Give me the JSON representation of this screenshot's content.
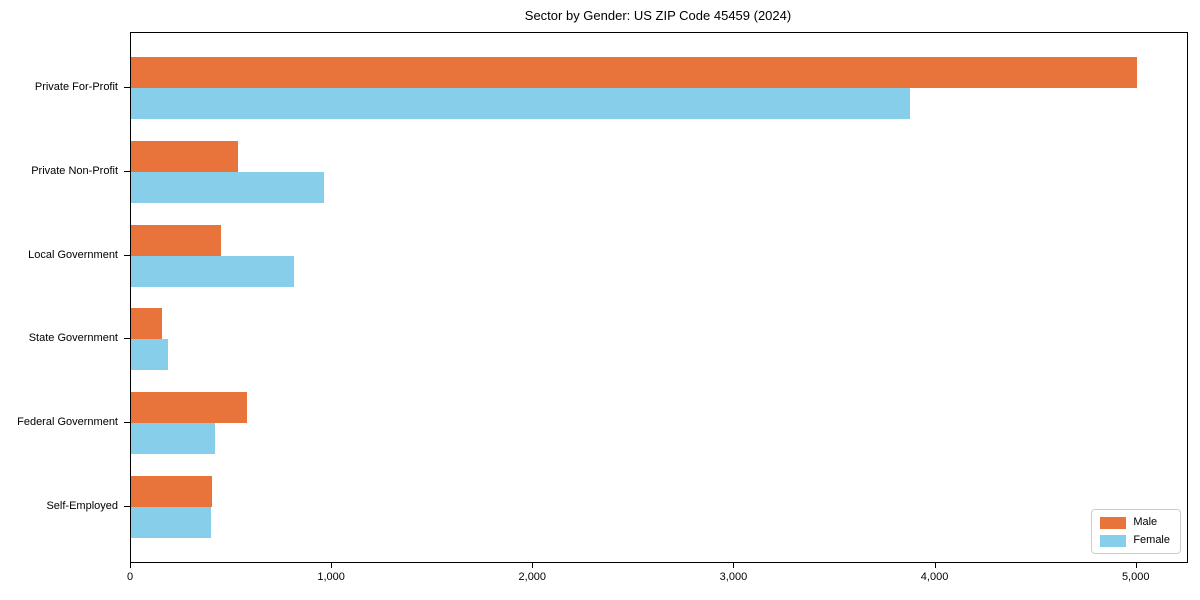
{
  "title": "Sector by Gender: US ZIP Code 45459 (2024)",
  "chart_data": {
    "type": "bar",
    "orientation": "horizontal",
    "title": "Sector by Gender: US ZIP Code 45459 (2024)",
    "categories": [
      "Private For-Profit",
      "Private Non-Profit",
      "Local Government",
      "State Government",
      "Federal Government",
      "Self-Employed"
    ],
    "series": [
      {
        "name": "Male",
        "color": "#E8743B",
        "values": [
          5000,
          530,
          445,
          155,
          575,
          405
        ]
      },
      {
        "name": "Female",
        "color": "#87CEEB",
        "values": [
          3875,
          960,
          810,
          185,
          420,
          400
        ]
      }
    ],
    "xlabel": "",
    "ylabel": "",
    "xlim": [
      0,
      5250
    ],
    "xticks": [
      0,
      1000,
      2000,
      3000,
      4000,
      5000
    ],
    "xtick_labels": [
      "0",
      "1,000",
      "2,000",
      "3,000",
      "4,000",
      "5,000"
    ],
    "grid": false,
    "legend_position": "lower right",
    "spine_color": "#000000",
    "text_color": "#000000"
  }
}
